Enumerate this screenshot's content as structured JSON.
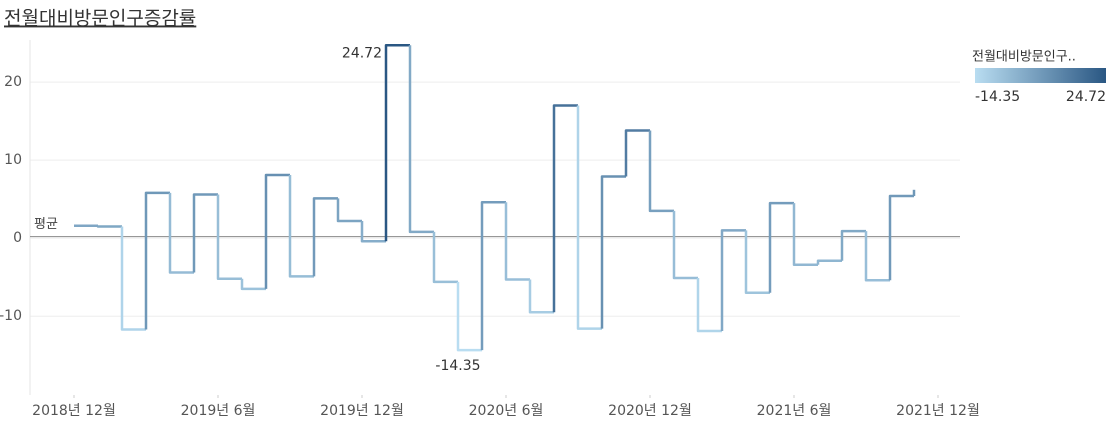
{
  "chart_data": {
    "type": "step-line",
    "title": "전월대비방문인구증감률",
    "x": [
      "2018-12",
      "2019-01",
      "2019-02",
      "2019-03",
      "2019-04",
      "2019-05",
      "2019-06",
      "2019-07",
      "2019-08",
      "2019-09",
      "2019-10",
      "2019-11",
      "2019-12",
      "2020-01",
      "2020-02",
      "2020-03",
      "2020-04",
      "2020-05",
      "2020-06",
      "2020-07",
      "2020-08",
      "2020-09",
      "2020-10",
      "2020-11",
      "2020-12",
      "2021-01",
      "2021-02",
      "2021-03",
      "2021-04",
      "2021-05",
      "2021-06",
      "2021-07",
      "2021-08",
      "2021-09",
      "2021-10",
      "2021-11"
    ],
    "series": [
      {
        "name": "전월대비방문인구증감률",
        "values": [
          1.6,
          1.5,
          -11.7,
          5.8,
          -4.4,
          5.6,
          -5.2,
          -6.5,
          8.1,
          -4.9,
          5.1,
          2.2,
          -0.4,
          24.72,
          0.8,
          -5.6,
          -14.35,
          4.6,
          -5.3,
          -9.5,
          17.0,
          -11.6,
          7.9,
          13.8,
          3.5,
          -5.1,
          -11.9,
          1.0,
          -7.0,
          4.5,
          -3.4,
          -2.9,
          0.9,
          -5.4,
          5.4,
          6.2
        ]
      }
    ],
    "color_range": {
      "title": "전월대비방문인구..",
      "colors": [
        "#b9ddf1",
        "#2a5783"
      ],
      "values": [
        -14.35,
        24.72
      ]
    },
    "reference_line": {
      "label": "평균",
      "value": 0.2
    },
    "ylim": [
      -20.1,
      25.4
    ],
    "yticks": [
      -10,
      0,
      10,
      20
    ],
    "xticks": [
      {
        "value": "2018-12",
        "label": "2018년 12월"
      },
      {
        "value": "2019-06",
        "label": "2019년 6월"
      },
      {
        "value": "2019-12",
        "label": "2019년 12월"
      },
      {
        "value": "2020-06",
        "label": "2020년 6월"
      },
      {
        "value": "2020-12",
        "label": "2020년 12월"
      },
      {
        "value": "2021-06",
        "label": "2021년 6월"
      },
      {
        "value": "2021-12",
        "label": "2021년 12월"
      }
    ],
    "grid": true
  }
}
